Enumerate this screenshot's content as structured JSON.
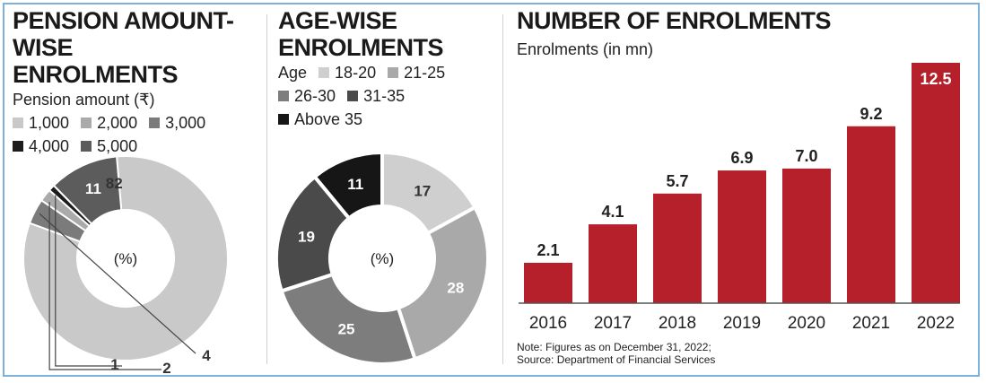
{
  "colors": {
    "border": "#7fb0d8",
    "bar": "#b5202a",
    "grey_1000": "#c9c9c9",
    "grey_2000": "#aaaaaa",
    "grey_3000": "#7b7b7b",
    "black_4000": "#1c1c1c",
    "grey_5000": "#5c5c5c",
    "age_18_20": "#cfcfcf",
    "age_21_25": "#a9a9a9",
    "age_26_30": "#7d7d7d",
    "age_31_35": "#4a4a4a",
    "age_above35": "#161616"
  },
  "panel1": {
    "title_line1": "PENSION AMOUNT-WISE",
    "title_line2": "ENROLMENTS",
    "subtitle": "Pension amount (₹)",
    "legend": [
      "1,000",
      "2,000",
      "3,000",
      "4,000",
      "5,000"
    ],
    "center_label": "(%)"
  },
  "panel2": {
    "title_line1": "AGE-WISE",
    "title_line2": "ENROLMENTS",
    "subtitle": "Age",
    "legend": [
      "18-20",
      "21-25",
      "26-30",
      "31-35",
      "Above 35"
    ],
    "center_label": "(%)"
  },
  "panel3": {
    "title": "NUMBER OF ENROLMENTS",
    "subtitle": "Enrolments (in mn)",
    "note_line1": "Note: Figures as on December 31, 2022;",
    "note_line2": "Source: Department of Financial Services"
  },
  "chart_data": [
    {
      "type": "pie",
      "title": "PENSION AMOUNT-WISE ENROLMENTS",
      "unit": "(%)",
      "slices": [
        {
          "label": "1,000",
          "value": 82,
          "value_label": "82"
        },
        {
          "label": "2,000",
          "value": 2,
          "value_label": "2"
        },
        {
          "label": "3,000",
          "value": 4,
          "value_label": "4"
        },
        {
          "label": "4,000",
          "value": 1,
          "value_label": "1"
        },
        {
          "label": "5,000",
          "value": 11,
          "value_label": "11"
        }
      ]
    },
    {
      "type": "pie",
      "title": "AGE-WISE ENROLMENTS",
      "unit": "(%)",
      "slices": [
        {
          "label": "18-20",
          "value": 17,
          "value_label": "17"
        },
        {
          "label": "21-25",
          "value": 28,
          "value_label": "28"
        },
        {
          "label": "26-30",
          "value": 25,
          "value_label": "25"
        },
        {
          "label": "31-35",
          "value": 19,
          "value_label": "19"
        },
        {
          "label": "Above 35",
          "value": 11,
          "value_label": "11"
        }
      ]
    },
    {
      "type": "bar",
      "title": "NUMBER OF ENROLMENTS",
      "ylabel": "Enrolments (in mn)",
      "categories": [
        "2016",
        "2017",
        "2018",
        "2019",
        "2020",
        "2021",
        "2022"
      ],
      "values": [
        2.1,
        4.1,
        5.7,
        6.9,
        7.0,
        9.2,
        12.5
      ],
      "value_labels": [
        "2.1",
        "4.1",
        "5.7",
        "6.9",
        "7.0",
        "9.2",
        "12.5"
      ],
      "ylim": [
        0,
        12.5
      ],
      "grid": false
    }
  ]
}
